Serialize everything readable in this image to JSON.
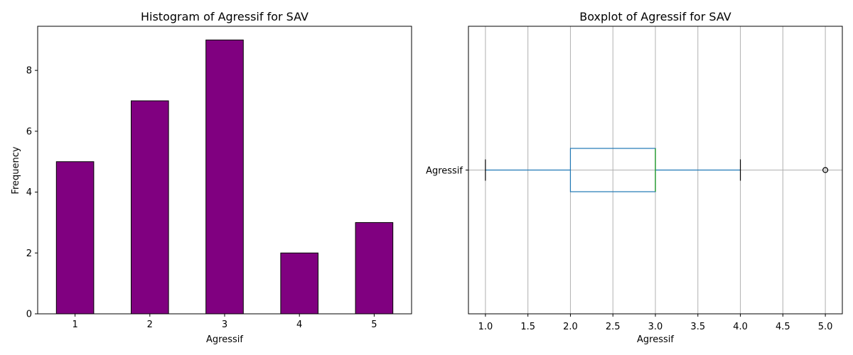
{
  "chart_data": [
    {
      "type": "bar",
      "title": "Histogram of Agressif for SAV",
      "xlabel": "Agressif",
      "ylabel": "Frequency",
      "categories": [
        "1",
        "2",
        "3",
        "4",
        "5"
      ],
      "values": [
        5,
        7,
        9,
        2,
        3
      ],
      "ylim": [
        0,
        9.45
      ],
      "yticks": [
        "0",
        "2",
        "4",
        "6",
        "8"
      ],
      "bar_color": "#800080",
      "edge_color": "#000000",
      "grid": false
    },
    {
      "type": "boxplot",
      "title": "Boxplot of Agressif for SAV",
      "xlabel": "Agressif",
      "category_label": "Agressif",
      "orientation": "horizontal",
      "whisker_low": 1.0,
      "q1": 2.0,
      "median": 3.0,
      "q3": 3.0,
      "whisker_high": 4.0,
      "outliers": [
        5.0
      ],
      "xlim": [
        0.8,
        5.2
      ],
      "xticks": [
        "1.0",
        "1.5",
        "2.0",
        "2.5",
        "3.0",
        "3.5",
        "4.0",
        "4.5",
        "5.0"
      ],
      "box_color": "#1f77b4",
      "median_color": "#2ca02c",
      "grid": true
    }
  ]
}
